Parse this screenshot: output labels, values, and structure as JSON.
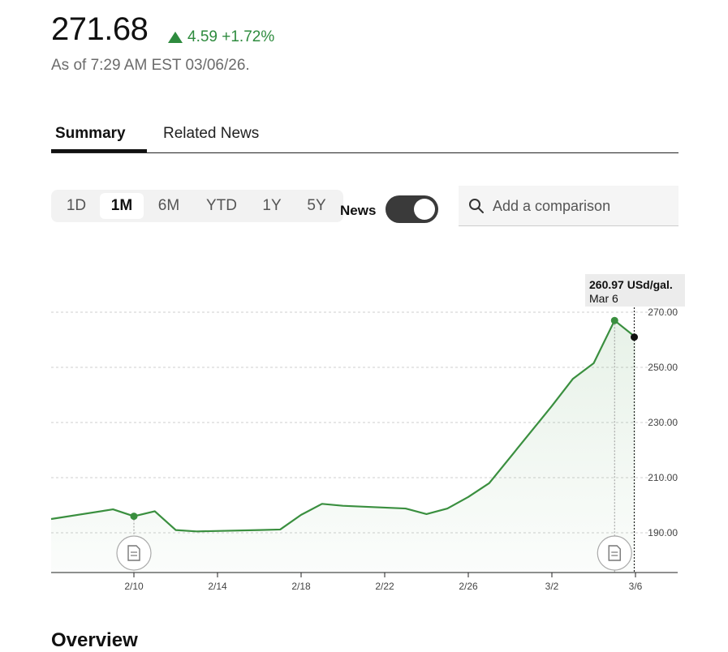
{
  "quote": {
    "price": "271.68",
    "change": "4.59 +1.72%",
    "as_of": "As of 7:29 AM EST 03/06/26."
  },
  "tabs": [
    {
      "label": "Summary",
      "active": true
    },
    {
      "label": "Related News",
      "active": false
    }
  ],
  "ranges": [
    {
      "label": "1D",
      "active": false
    },
    {
      "label": "1M",
      "active": true
    },
    {
      "label": "6M",
      "active": false
    },
    {
      "label": "YTD",
      "active": false
    },
    {
      "label": "1Y",
      "active": false
    },
    {
      "label": "5Y",
      "active": false
    }
  ],
  "news_toggle": {
    "label": "News",
    "on": true
  },
  "search": {
    "placeholder": "Add a comparison"
  },
  "tooltip": {
    "value": "260.97 USd/gal.",
    "date": "Mar 6"
  },
  "overview_heading": "Overview",
  "colors": {
    "up": "#2e8b3e",
    "line": "#3a8f3f"
  },
  "icons": [
    "search-icon",
    "news-document-icon"
  ],
  "chart_data": {
    "type": "area",
    "title": "",
    "xlabel": "",
    "ylabel": "",
    "x_tick_labels": [
      "2/10",
      "2/14",
      "2/18",
      "2/22",
      "2/26",
      "3/2",
      "3/6"
    ],
    "y_tick_labels": [
      "270.00",
      "250.00",
      "230.00",
      "210.00",
      "190.00"
    ],
    "y_ticks": [
      270,
      250,
      230,
      210,
      190
    ],
    "ylim": [
      175,
      275
    ],
    "grid": true,
    "series": [
      {
        "x": [
          "2/6",
          "2/9",
          "2/10",
          "2/11",
          "2/12",
          "2/13",
          "2/16",
          "2/17",
          "2/18",
          "2/19",
          "2/20",
          "2/23",
          "2/24",
          "2/25",
          "2/26",
          "2/27",
          "3/2",
          "3/3",
          "3/4",
          "3/5",
          "3/6"
        ],
        "values": [
          195.0,
          198.5,
          196.0,
          197.8,
          191.0,
          190.5,
          191.0,
          191.2,
          196.5,
          200.5,
          199.8,
          198.8,
          196.8,
          198.8,
          203.0,
          208.0,
          236.0,
          245.8,
          251.5,
          267.0,
          260.97
        ]
      }
    ],
    "news_markers": [
      "2/10",
      "3/5"
    ]
  }
}
